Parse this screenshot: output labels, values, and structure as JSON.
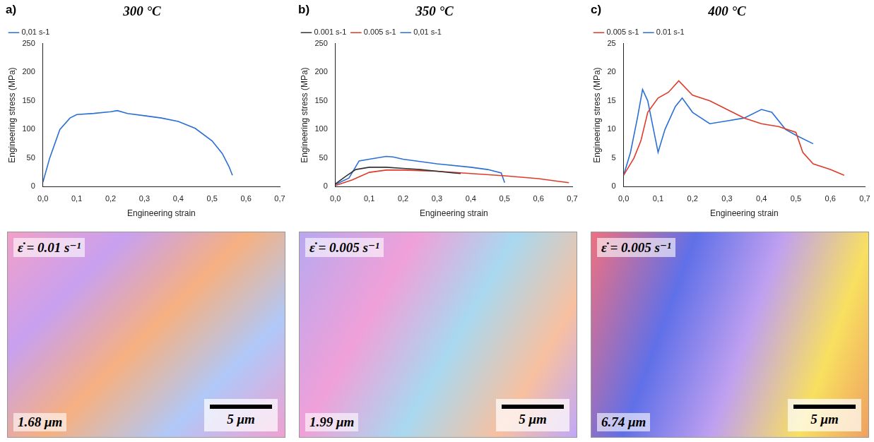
{
  "panel_labels": [
    "a)",
    "b)",
    "c)"
  ],
  "chart_data": [
    {
      "type": "line",
      "title": "300 °C",
      "x_label": "Engineering strain",
      "y_label": "Engineering stress (MPa)",
      "xlim": [
        0,
        0.7
      ],
      "xticks": [
        {
          "value": 0,
          "label": "0,0"
        },
        {
          "value": 0.1,
          "label": "0,1"
        },
        {
          "value": 0.2,
          "label": "0,2"
        },
        {
          "value": 0.3,
          "label": "0,3"
        },
        {
          "value": 0.4,
          "label": "0,4"
        },
        {
          "value": 0.5,
          "label": "0,5"
        },
        {
          "value": 0.6,
          "label": "0,6"
        },
        {
          "value": 0.7,
          "label": "0,7"
        }
      ],
      "ylim": [
        0,
        250
      ],
      "yticks": [
        0,
        50,
        100,
        150,
        200,
        250
      ],
      "grid": false,
      "legend": "upper left",
      "series": [
        {
          "name": "0,01 s-1",
          "color": "#2a6fd6",
          "x": [
            0,
            0.02,
            0.05,
            0.08,
            0.1,
            0.15,
            0.2,
            0.22,
            0.25,
            0.3,
            0.35,
            0.4,
            0.45,
            0.5,
            0.53,
            0.55,
            0.56
          ],
          "values": [
            8,
            50,
            100,
            120,
            126,
            128,
            131,
            133,
            128,
            124,
            120,
            114,
            102,
            80,
            58,
            35,
            20
          ]
        }
      ]
    },
    {
      "type": "line",
      "title": "350 °C",
      "x_label": "Engineering strain",
      "y_label": "Engineering stress (MPa)",
      "xlim": [
        0,
        0.7
      ],
      "xticks": [
        {
          "value": 0,
          "label": "0,0"
        },
        {
          "value": 0.1,
          "label": "0,1"
        },
        {
          "value": 0.2,
          "label": "0,2"
        },
        {
          "value": 0.3,
          "label": "0,3"
        },
        {
          "value": 0.4,
          "label": "0,4"
        },
        {
          "value": 0.5,
          "label": "0,5"
        },
        {
          "value": 0.6,
          "label": "0,6"
        },
        {
          "value": 0.7,
          "label": "0,7"
        }
      ],
      "ylim": [
        0,
        250
      ],
      "yticks": [
        0,
        50,
        100,
        150,
        200,
        250
      ],
      "grid": false,
      "legend": "upper left",
      "series": [
        {
          "name": "0.001 s-1",
          "color": "#333333",
          "x": [
            0,
            0.03,
            0.06,
            0.1,
            0.15,
            0.2,
            0.25,
            0.3,
            0.35,
            0.37
          ],
          "values": [
            5,
            18,
            30,
            34,
            34,
            32,
            30,
            27,
            24,
            23
          ]
        },
        {
          "name": "0.005 s-1",
          "color": "#e03a2a",
          "x": [
            0,
            0.05,
            0.1,
            0.15,
            0.2,
            0.3,
            0.4,
            0.5,
            0.6,
            0.65,
            0.69
          ],
          "values": [
            2,
            12,
            25,
            29,
            29,
            27,
            23,
            19,
            14,
            10,
            7
          ]
        },
        {
          "name": "0,01 s-1",
          "color": "#2a6fd6",
          "x": [
            0,
            0.04,
            0.07,
            0.1,
            0.15,
            0.17,
            0.2,
            0.3,
            0.4,
            0.45,
            0.49,
            0.5
          ],
          "values": [
            4,
            15,
            45,
            48,
            53,
            52,
            48,
            40,
            34,
            30,
            24,
            7
          ]
        }
      ]
    },
    {
      "type": "line",
      "title": "400 °C",
      "x_label": "Engineering strain",
      "y_label": "Engineering stress (MPa)",
      "xlim": [
        0,
        0.7
      ],
      "xticks": [
        {
          "value": 0,
          "label": "0,0"
        },
        {
          "value": 0.1,
          "label": "0,1"
        },
        {
          "value": 0.2,
          "label": "0,2"
        },
        {
          "value": 0.3,
          "label": "0,3"
        },
        {
          "value": 0.4,
          "label": "0,4"
        },
        {
          "value": 0.5,
          "label": "0,5"
        },
        {
          "value": 0.6,
          "label": "0,6"
        },
        {
          "value": 0.7,
          "label": "0,7"
        }
      ],
      "ylim": [
        0,
        25
      ],
      "yticks": [
        0,
        5,
        10,
        15,
        20,
        25
      ],
      "grid": false,
      "legend": "upper left",
      "series": [
        {
          "name": "0.005 s-1",
          "color": "#e03a2a",
          "x": [
            0,
            0.03,
            0.05,
            0.07,
            0.1,
            0.13,
            0.16,
            0.2,
            0.25,
            0.3,
            0.35,
            0.4,
            0.45,
            0.5,
            0.52,
            0.55,
            0.6,
            0.64
          ],
          "values": [
            2,
            5,
            8,
            13,
            15.5,
            16.5,
            18.5,
            16,
            15,
            13.5,
            12,
            11,
            10.5,
            9.5,
            6,
            4,
            3,
            2
          ]
        },
        {
          "name": "0.01 s-1",
          "color": "#2a6fd6",
          "x": [
            0,
            0.02,
            0.04,
            0.055,
            0.07,
            0.09,
            0.1,
            0.12,
            0.15,
            0.17,
            0.2,
            0.25,
            0.3,
            0.35,
            0.4,
            0.43,
            0.47,
            0.5,
            0.55
          ],
          "values": [
            2,
            6,
            12,
            17,
            15,
            9,
            6,
            10,
            14,
            15.5,
            13,
            11,
            11.5,
            12,
            13.5,
            13,
            10,
            9,
            7.5
          ]
        }
      ]
    }
  ],
  "micrographs": [
    {
      "strain_rate": "ε̇ = 0.01 s⁻¹",
      "grain_size": "1.68 μm",
      "scale_bar": "5 μm"
    },
    {
      "strain_rate": "ε̇ = 0.005 s⁻¹",
      "grain_size": "1.99 μm",
      "scale_bar": "5 μm"
    },
    {
      "strain_rate": "ε̇ = 0.005 s⁻¹",
      "grain_size": "6.74 μm",
      "scale_bar": "5 μm"
    }
  ]
}
